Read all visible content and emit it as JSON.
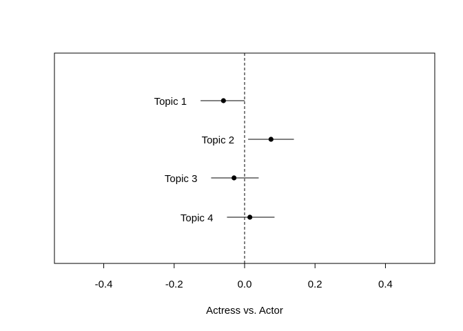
{
  "chart_data": {
    "type": "scatter",
    "title": "",
    "xlabel": "Actress vs. Actor",
    "ylabel": "",
    "xlim": [
      -0.54,
      0.54
    ],
    "x_ticks": [
      -0.4,
      -0.2,
      0.0,
      0.2,
      0.4
    ],
    "x_tick_labels": [
      "-0.4",
      "-0.2",
      "0.0",
      "0.2",
      "0.4"
    ],
    "reference_line": 0.0,
    "grid": false,
    "points": [
      {
        "label": "Topic 1",
        "estimate": -0.06,
        "lower": -0.125,
        "upper": 0.0
      },
      {
        "label": "Topic 2",
        "estimate": 0.075,
        "lower": 0.01,
        "upper": 0.14
      },
      {
        "label": "Topic 3",
        "estimate": -0.03,
        "lower": -0.095,
        "upper": 0.04
      },
      {
        "label": "Topic 4",
        "estimate": 0.015,
        "lower": -0.05,
        "upper": 0.085
      }
    ]
  }
}
